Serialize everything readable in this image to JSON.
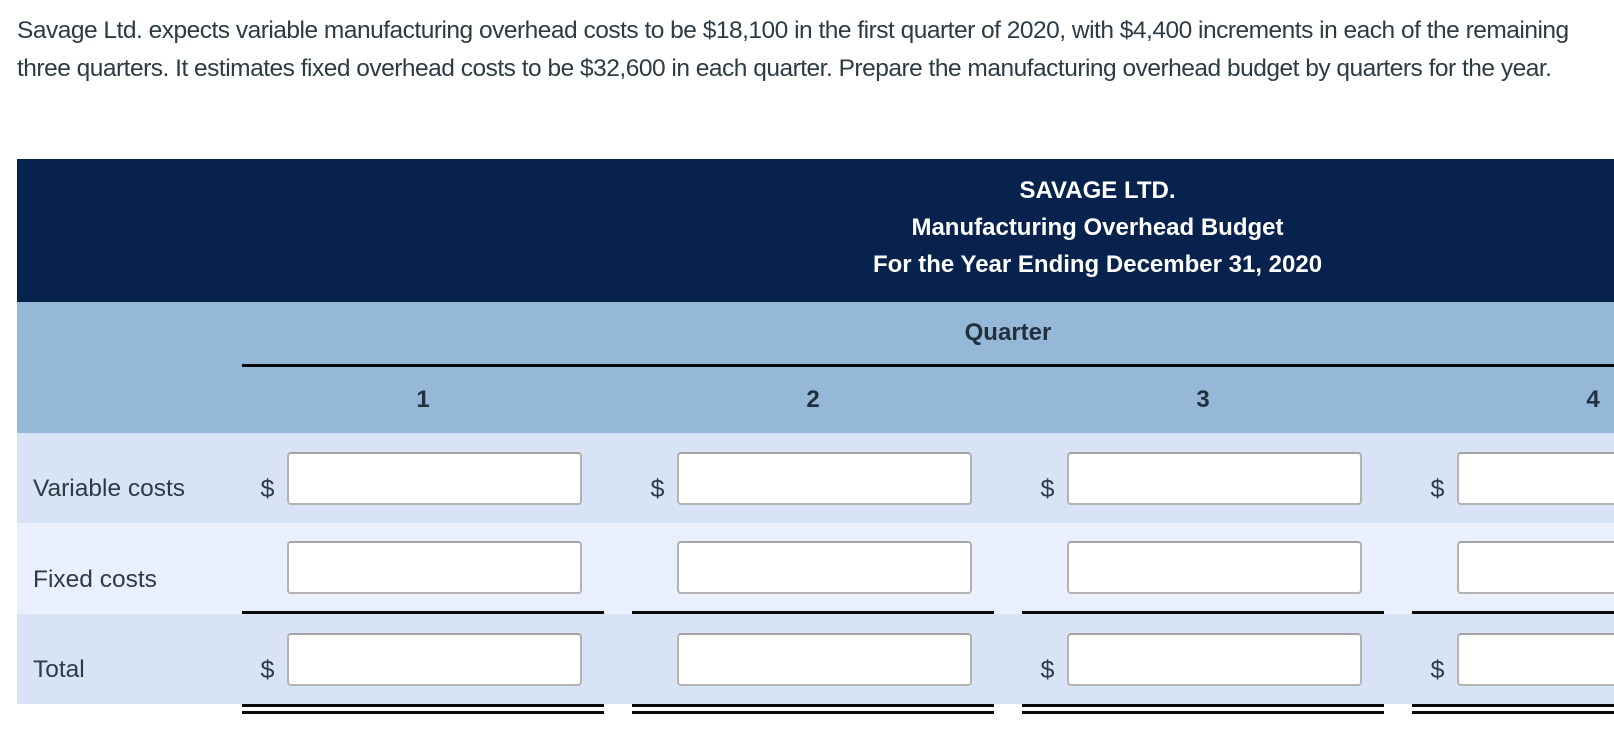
{
  "problem_text": "Savage Ltd. expects variable manufacturing overhead costs to be $18,100 in the first quarter of 2020, with $4,400 increments in each of the remaining three quarters. It estimates fixed overhead costs to be $32,600 in each quarter. Prepare the manufacturing overhead budget by quarters for the year.",
  "table": {
    "header": {
      "company": "SAVAGE LTD.",
      "report": "Manufacturing Overhead Budget",
      "period": "For the Year Ending December 31, 2020"
    },
    "quarter": {
      "group_label": "Quarter",
      "columns": [
        "1",
        "2",
        "3",
        "4"
      ]
    },
    "rows": [
      {
        "label": "Variable costs",
        "cells": [
          {
            "dollar": "$",
            "input_value": ""
          },
          {
            "dollar": "$",
            "input_value": ""
          },
          {
            "dollar": "$",
            "input_value": ""
          },
          {
            "dollar": "$",
            "input_value": ""
          }
        ]
      },
      {
        "label": "Fixed costs",
        "cells": [
          {
            "dollar": "",
            "input_value": ""
          },
          {
            "dollar": "",
            "input_value": ""
          },
          {
            "dollar": "",
            "input_value": ""
          },
          {
            "dollar": "",
            "input_value": ""
          }
        ]
      },
      {
        "label": "Total",
        "cells": [
          {
            "dollar": "$",
            "input_value": ""
          },
          {
            "dollar": "",
            "input_value": ""
          },
          {
            "dollar": "$",
            "input_value": ""
          },
          {
            "dollar": "$",
            "input_value": ""
          }
        ]
      }
    ],
    "colors": {
      "header_bg": "#07234d",
      "header_text": "#ffffff",
      "quarter_band_bg": "#95b8d8",
      "row_light_blue": "#d8e3f5",
      "row_pale_blue": "#e9effc",
      "rule_black": "#0a0a0a",
      "body_text": "#2d3b45",
      "input_border": "#b3b3b3"
    }
  }
}
